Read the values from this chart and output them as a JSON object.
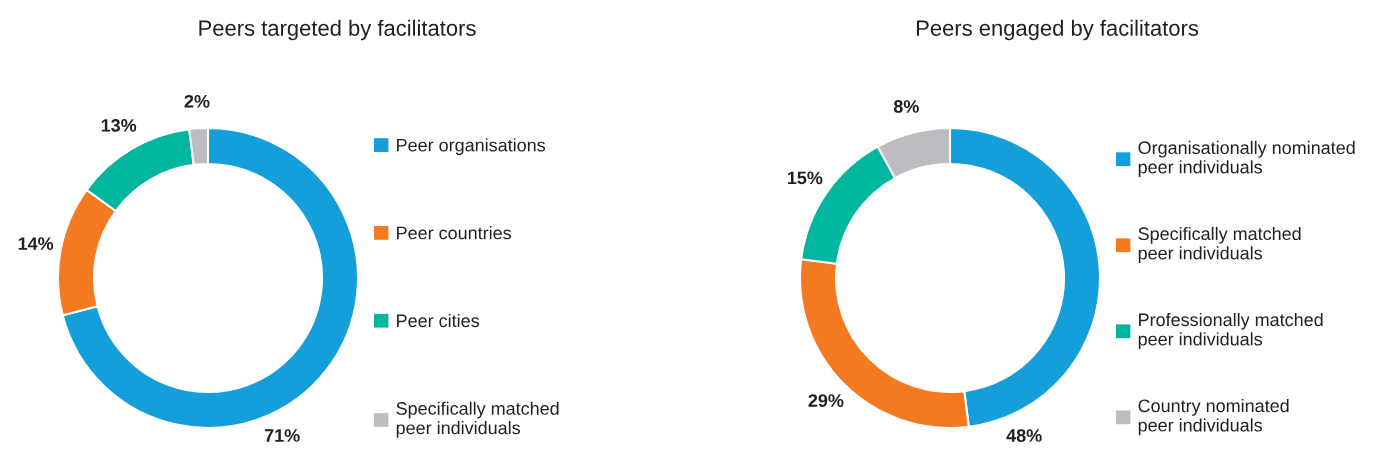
{
  "chart_data": [
    {
      "type": "donut",
      "title": "Peers targeted by facilitators",
      "categories": [
        "Peer organisations",
        "Peer countries",
        "Peer cities",
        "Specifically matched\npeer individuals"
      ],
      "values": [
        71,
        14,
        13,
        2
      ],
      "value_labels": [
        "71%",
        "14%",
        "13%",
        "2%"
      ],
      "colors": [
        "#149fdb",
        "#f37a21",
        "#00b69f",
        "#bcbdc0"
      ],
      "legend": "right"
    },
    {
      "type": "donut",
      "title": "Peers engaged by facilitators",
      "categories": [
        "Organisationally nominated\npeer individuals",
        "Specifically matched\npeer individuals",
        "Professionally matched\npeer individuals",
        "Country nominated\npeer individuals"
      ],
      "values": [
        48,
        29,
        15,
        8
      ],
      "value_labels": [
        "48%",
        "29%",
        "15%",
        "8%"
      ],
      "colors": [
        "#149fdb",
        "#f37a21",
        "#00b69f",
        "#bcbdc0"
      ],
      "legend": "right"
    }
  ]
}
